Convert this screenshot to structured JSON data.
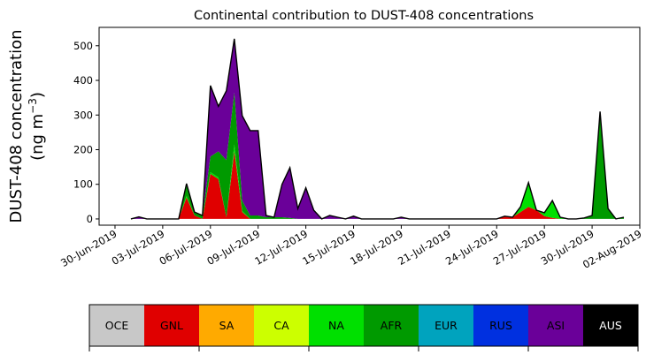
{
  "chart_data": {
    "type": "area",
    "stacked": true,
    "title": "Continental contribution to DUST-408 concentrations",
    "ylabel_line1": "DUST-408 concentration",
    "ylabel_line2": "(ng m",
    "ylabel_sup": "−3",
    "ylabel_close": ")",
    "ylim": [
      -18,
      553
    ],
    "yticks": [
      0,
      100,
      200,
      300,
      400,
      500
    ],
    "x_start": "2019-06-29",
    "x_end": "2019-08-02",
    "xticks": [
      "30-Jun-2019",
      "03-Jul-2019",
      "06-Jul-2019",
      "09-Jul-2019",
      "12-Jul-2019",
      "15-Jul-2019",
      "18-Jul-2019",
      "21-Jul-2019",
      "24-Jul-2019",
      "27-Jul-2019",
      "30-Jul-2019",
      "02-Aug-2019"
    ],
    "xtick_dates": [
      "2019-06-30",
      "2019-07-03",
      "2019-07-06",
      "2019-07-09",
      "2019-07-12",
      "2019-07-15",
      "2019-07-18",
      "2019-07-21",
      "2019-07-24",
      "2019-07-27",
      "2019-07-30",
      "2019-08-02"
    ],
    "dates": [
      "2019-07-01",
      "2019-07-01 12:00",
      "2019-07-02",
      "2019-07-02 12:00",
      "2019-07-03",
      "2019-07-03 12:00",
      "2019-07-04",
      "2019-07-04 12:00",
      "2019-07-05",
      "2019-07-05 12:00",
      "2019-07-06",
      "2019-07-06 12:00",
      "2019-07-07",
      "2019-07-07 12:00",
      "2019-07-08",
      "2019-07-08 12:00",
      "2019-07-09",
      "2019-07-09 12:00",
      "2019-07-10",
      "2019-07-10 12:00",
      "2019-07-11",
      "2019-07-11 12:00",
      "2019-07-12",
      "2019-07-12 12:00",
      "2019-07-13",
      "2019-07-13 12:00",
      "2019-07-14",
      "2019-07-14 12:00",
      "2019-07-15",
      "2019-07-15 12:00",
      "2019-07-16",
      "2019-07-16 12:00",
      "2019-07-17",
      "2019-07-17 12:00",
      "2019-07-18",
      "2019-07-18 12:00",
      "2019-07-19",
      "2019-07-19 12:00",
      "2019-07-20",
      "2019-07-20 12:00",
      "2019-07-21",
      "2019-07-21 12:00",
      "2019-07-22",
      "2019-07-22 12:00",
      "2019-07-23",
      "2019-07-23 12:00",
      "2019-07-24",
      "2019-07-24 12:00",
      "2019-07-25",
      "2019-07-25 12:00",
      "2019-07-26",
      "2019-07-26 12:00",
      "2019-07-27",
      "2019-07-27 12:00",
      "2019-07-28",
      "2019-07-28 12:00",
      "2019-07-29",
      "2019-07-29 12:00",
      "2019-07-30",
      "2019-07-30 12:00",
      "2019-07-31",
      "2019-07-31 12:00",
      "2019-08-01"
    ],
    "series": [
      {
        "name": "GNL",
        "color": "#e00000",
        "values": [
          0,
          0,
          0,
          0,
          0,
          0,
          0,
          62,
          10,
          0,
          130,
          115,
          5,
          195,
          20,
          0,
          0,
          0,
          0,
          0,
          0,
          0,
          0,
          0,
          0,
          0,
          0,
          0,
          0,
          0,
          0,
          0,
          0,
          0,
          0,
          0,
          0,
          0,
          0,
          0,
          0,
          0,
          0,
          0,
          0,
          0,
          0,
          8,
          5,
          20,
          35,
          25,
          8,
          3,
          0,
          0,
          0,
          0,
          0,
          0,
          0,
          0,
          0
        ]
      },
      {
        "name": "NA",
        "color": "#00e000",
        "values": [
          0,
          0,
          0,
          0,
          0,
          0,
          0,
          5,
          0,
          0,
          5,
          5,
          0,
          20,
          3,
          0,
          0,
          0,
          0,
          0,
          0,
          0,
          0,
          0,
          0,
          0,
          0,
          0,
          0,
          0,
          0,
          0,
          0,
          0,
          0,
          0,
          0,
          0,
          0,
          0,
          0,
          0,
          0,
          0,
          0,
          0,
          0,
          0,
          0,
          15,
          70,
          0,
          10,
          50,
          5,
          0,
          0,
          0,
          0,
          0,
          0,
          0,
          0
        ]
      },
      {
        "name": "AFR",
        "color": "#009a00",
        "values": [
          0,
          0,
          0,
          0,
          0,
          0,
          0,
          30,
          10,
          10,
          45,
          75,
          165,
          150,
          30,
          10,
          10,
          5,
          5,
          5,
          3,
          0,
          0,
          0,
          0,
          0,
          0,
          0,
          0,
          0,
          0,
          0,
          0,
          0,
          0,
          0,
          0,
          0,
          0,
          0,
          0,
          0,
          0,
          0,
          0,
          0,
          0,
          0,
          0,
          0,
          0,
          0,
          0,
          0,
          0,
          0,
          0,
          3,
          10,
          310,
          30,
          0,
          5
        ]
      },
      {
        "name": "ASI",
        "color": "#6a0099",
        "values": [
          0,
          6,
          0,
          0,
          0,
          0,
          0,
          5,
          0,
          0,
          205,
          130,
          200,
          155,
          245,
          245,
          245,
          5,
          0,
          95,
          145,
          30,
          90,
          25,
          0,
          10,
          5,
          0,
          8,
          0,
          0,
          0,
          0,
          0,
          5,
          0,
          0,
          0,
          0,
          0,
          0,
          0,
          0,
          0,
          0,
          0,
          0,
          0,
          0,
          0,
          0,
          0,
          0,
          0,
          0,
          0,
          0,
          0,
          0,
          0,
          0,
          0,
          0
        ]
      },
      {
        "name": "RUS",
        "color": "#0030e0",
        "values": [
          0,
          0,
          0,
          0,
          0,
          0,
          0,
          0,
          0,
          0,
          0,
          0,
          0,
          0,
          0,
          0,
          0,
          0,
          0,
          0,
          0,
          0,
          0,
          0,
          0,
          0,
          0,
          0,
          0,
          0,
          0,
          0,
          0,
          0,
          0,
          0,
          0,
          0,
          0,
          0,
          0,
          0,
          0,
          0,
          0,
          0,
          0,
          0,
          0,
          0,
          0,
          0,
          0,
          0,
          0,
          0,
          0,
          0,
          0,
          0,
          0,
          0,
          0
        ]
      }
    ]
  },
  "legend": [
    {
      "label": "OCE",
      "color": "#c8c8c8",
      "text_color": "#000000"
    },
    {
      "label": "GNL",
      "color": "#e00000",
      "text_color": "#000000"
    },
    {
      "label": "SA",
      "color": "#ffaa00",
      "text_color": "#000000"
    },
    {
      "label": "CA",
      "color": "#ccff00",
      "text_color": "#000000"
    },
    {
      "label": "NA",
      "color": "#00e000",
      "text_color": "#000000"
    },
    {
      "label": "AFR",
      "color": "#009a00",
      "text_color": "#000000"
    },
    {
      "label": "EUR",
      "color": "#00a3be",
      "text_color": "#000000"
    },
    {
      "label": "RUS",
      "color": "#0030e0",
      "text_color": "#000000"
    },
    {
      "label": "ASI",
      "color": "#6a0099",
      "text_color": "#000000"
    },
    {
      "label": "AUS",
      "color": "#000000",
      "text_color": "#ffffff"
    }
  ]
}
